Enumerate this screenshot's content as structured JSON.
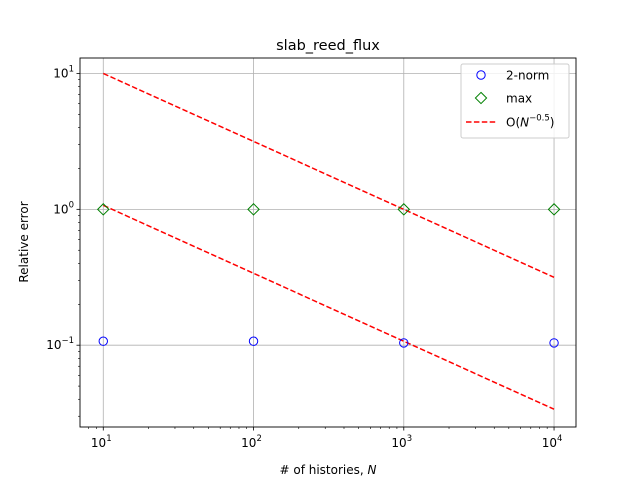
{
  "chart_data": {
    "type": "scatter",
    "title": "slab_reed_flux",
    "xlabel": "# of histories, N",
    "ylabel": "Relative error",
    "xscale": "log",
    "yscale": "log",
    "xlim": [
      7,
      14000
    ],
    "ylim": [
      0.025,
      13
    ],
    "grid": true,
    "legend_position": "top-right",
    "x_ticks": [
      {
        "base": "10",
        "exp": "1",
        "value": 10
      },
      {
        "base": "10",
        "exp": "2",
        "value": 100
      },
      {
        "base": "10",
        "exp": "3",
        "value": 1000
      },
      {
        "base": "10",
        "exp": "4",
        "value": 10000
      }
    ],
    "y_ticks": [
      {
        "base": "10",
        "exp": "−1",
        "value": 0.1
      },
      {
        "base": "10",
        "exp": "0",
        "value": 1
      },
      {
        "base": "10",
        "exp": "1",
        "value": 10
      }
    ],
    "series": [
      {
        "name": "2-norm",
        "marker": "circle",
        "color": "#0000ff",
        "x": [
          10,
          100,
          1000,
          10000
        ],
        "y": [
          0.107,
          0.107,
          0.104,
          0.104
        ]
      },
      {
        "name": "max",
        "marker": "diamond",
        "color": "#008000",
        "x": [
          10,
          100,
          1000,
          10000
        ],
        "y": [
          1.0,
          1.0,
          1.0,
          1.0
        ]
      }
    ],
    "reference_lines": [
      {
        "style": "dashed",
        "color": "#ff0000",
        "x": [
          10,
          10000
        ],
        "y": [
          10.0,
          0.316
        ]
      },
      {
        "style": "dashed",
        "color": "#ff0000",
        "x": [
          10,
          10000
        ],
        "y": [
          1.07,
          0.0338
        ]
      }
    ],
    "legend": [
      {
        "label": "2-norm",
        "marker": "circle",
        "color": "#0000ff"
      },
      {
        "label": "max",
        "marker": "diamond",
        "color": "#008000"
      },
      {
        "label_prefix": "O(",
        "label_var": "N",
        "label_sup": "−0.5",
        "label_suffix": ")",
        "marker": "dashed-line",
        "color": "#ff0000"
      }
    ]
  }
}
